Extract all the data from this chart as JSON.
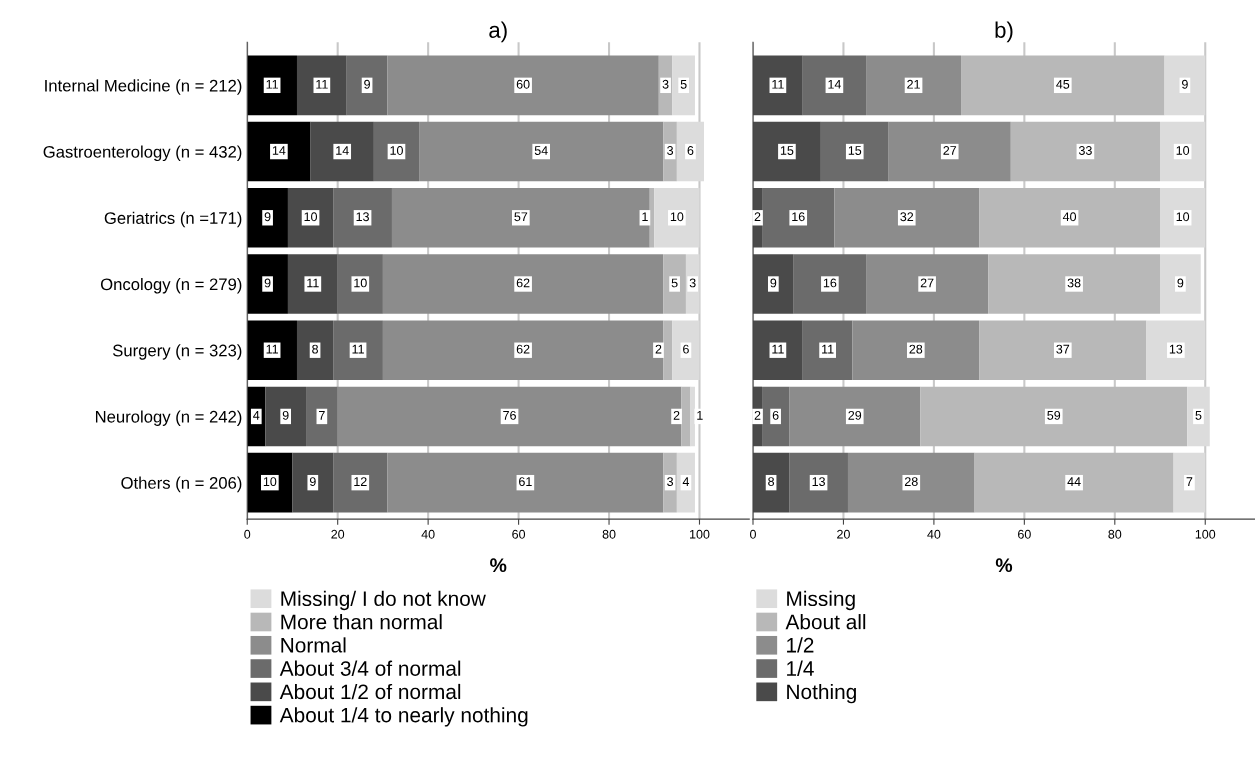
{
  "chart_data": [
    {
      "type": "bar",
      "orientation": "horizontal",
      "stacked": true,
      "title": "a)",
      "xlabel": "%",
      "categories": [
        "Internal Medicine (n = 212)",
        "Gastroenterology (n = 432)",
        "Geriatrics (n =171)",
        "Oncology (n = 279)",
        "Surgery (n = 323)",
        "Neurology (n = 242)",
        "Others (n = 206)"
      ],
      "series": [
        {
          "name": "About 1/4 to nearly nothing",
          "color": "#000000",
          "values": [
            11,
            14,
            9,
            9,
            11,
            4,
            10
          ]
        },
        {
          "name": "About 1/2 of normal",
          "color": "#4a4a4a",
          "values": [
            11,
            14,
            10,
            11,
            8,
            9,
            9
          ]
        },
        {
          "name": "About 3/4 of normal",
          "color": "#6b6b6b",
          "values": [
            9,
            10,
            13,
            10,
            11,
            7,
            12
          ]
        },
        {
          "name": "Normal",
          "color": "#8c8c8c",
          "values": [
            60,
            54,
            57,
            62,
            62,
            76,
            61
          ]
        },
        {
          "name": "More than normal",
          "color": "#b8b8b8",
          "values": [
            3,
            3,
            1,
            5,
            2,
            2,
            3
          ]
        },
        {
          "name": "Missing/ I do not know",
          "color": "#dcdcdc",
          "values": [
            5,
            6,
            10,
            3,
            6,
            1,
            4
          ]
        }
      ],
      "xlim": [
        0,
        111
      ],
      "xticks": [
        0,
        20,
        40,
        60,
        80,
        100
      ],
      "grid": "x",
      "legend": "bottom",
      "data_labels": true
    },
    {
      "type": "bar",
      "orientation": "horizontal",
      "stacked": true,
      "title": "b)",
      "xlabel": "%",
      "categories": [
        null,
        null,
        null,
        null,
        null,
        null,
        null
      ],
      "series": [
        {
          "name": "Nothing",
          "color": "#4a4a4a",
          "values": [
            11,
            15,
            2,
            9,
            11,
            2,
            8
          ]
        },
        {
          "name": "1/4",
          "color": "#6b6b6b",
          "values": [
            14,
            15,
            16,
            16,
            11,
            6,
            13
          ]
        },
        {
          "name": "1/2",
          "color": "#8c8c8c",
          "values": [
            21,
            27,
            32,
            27,
            28,
            29,
            28
          ]
        },
        {
          "name": "About all",
          "color": "#b8b8b8",
          "values": [
            45,
            33,
            40,
            38,
            37,
            59,
            44
          ]
        },
        {
          "name": "Missing",
          "color": "#dcdcdc",
          "values": [
            9,
            10,
            10,
            9,
            13,
            5,
            7
          ]
        }
      ],
      "xlim": [
        0,
        111
      ],
      "xticks": [
        0,
        20,
        40,
        60,
        80,
        100
      ],
      "grid": "x",
      "legend": "bottom",
      "data_labels": true,
      "tick_labels": "x"
    }
  ]
}
